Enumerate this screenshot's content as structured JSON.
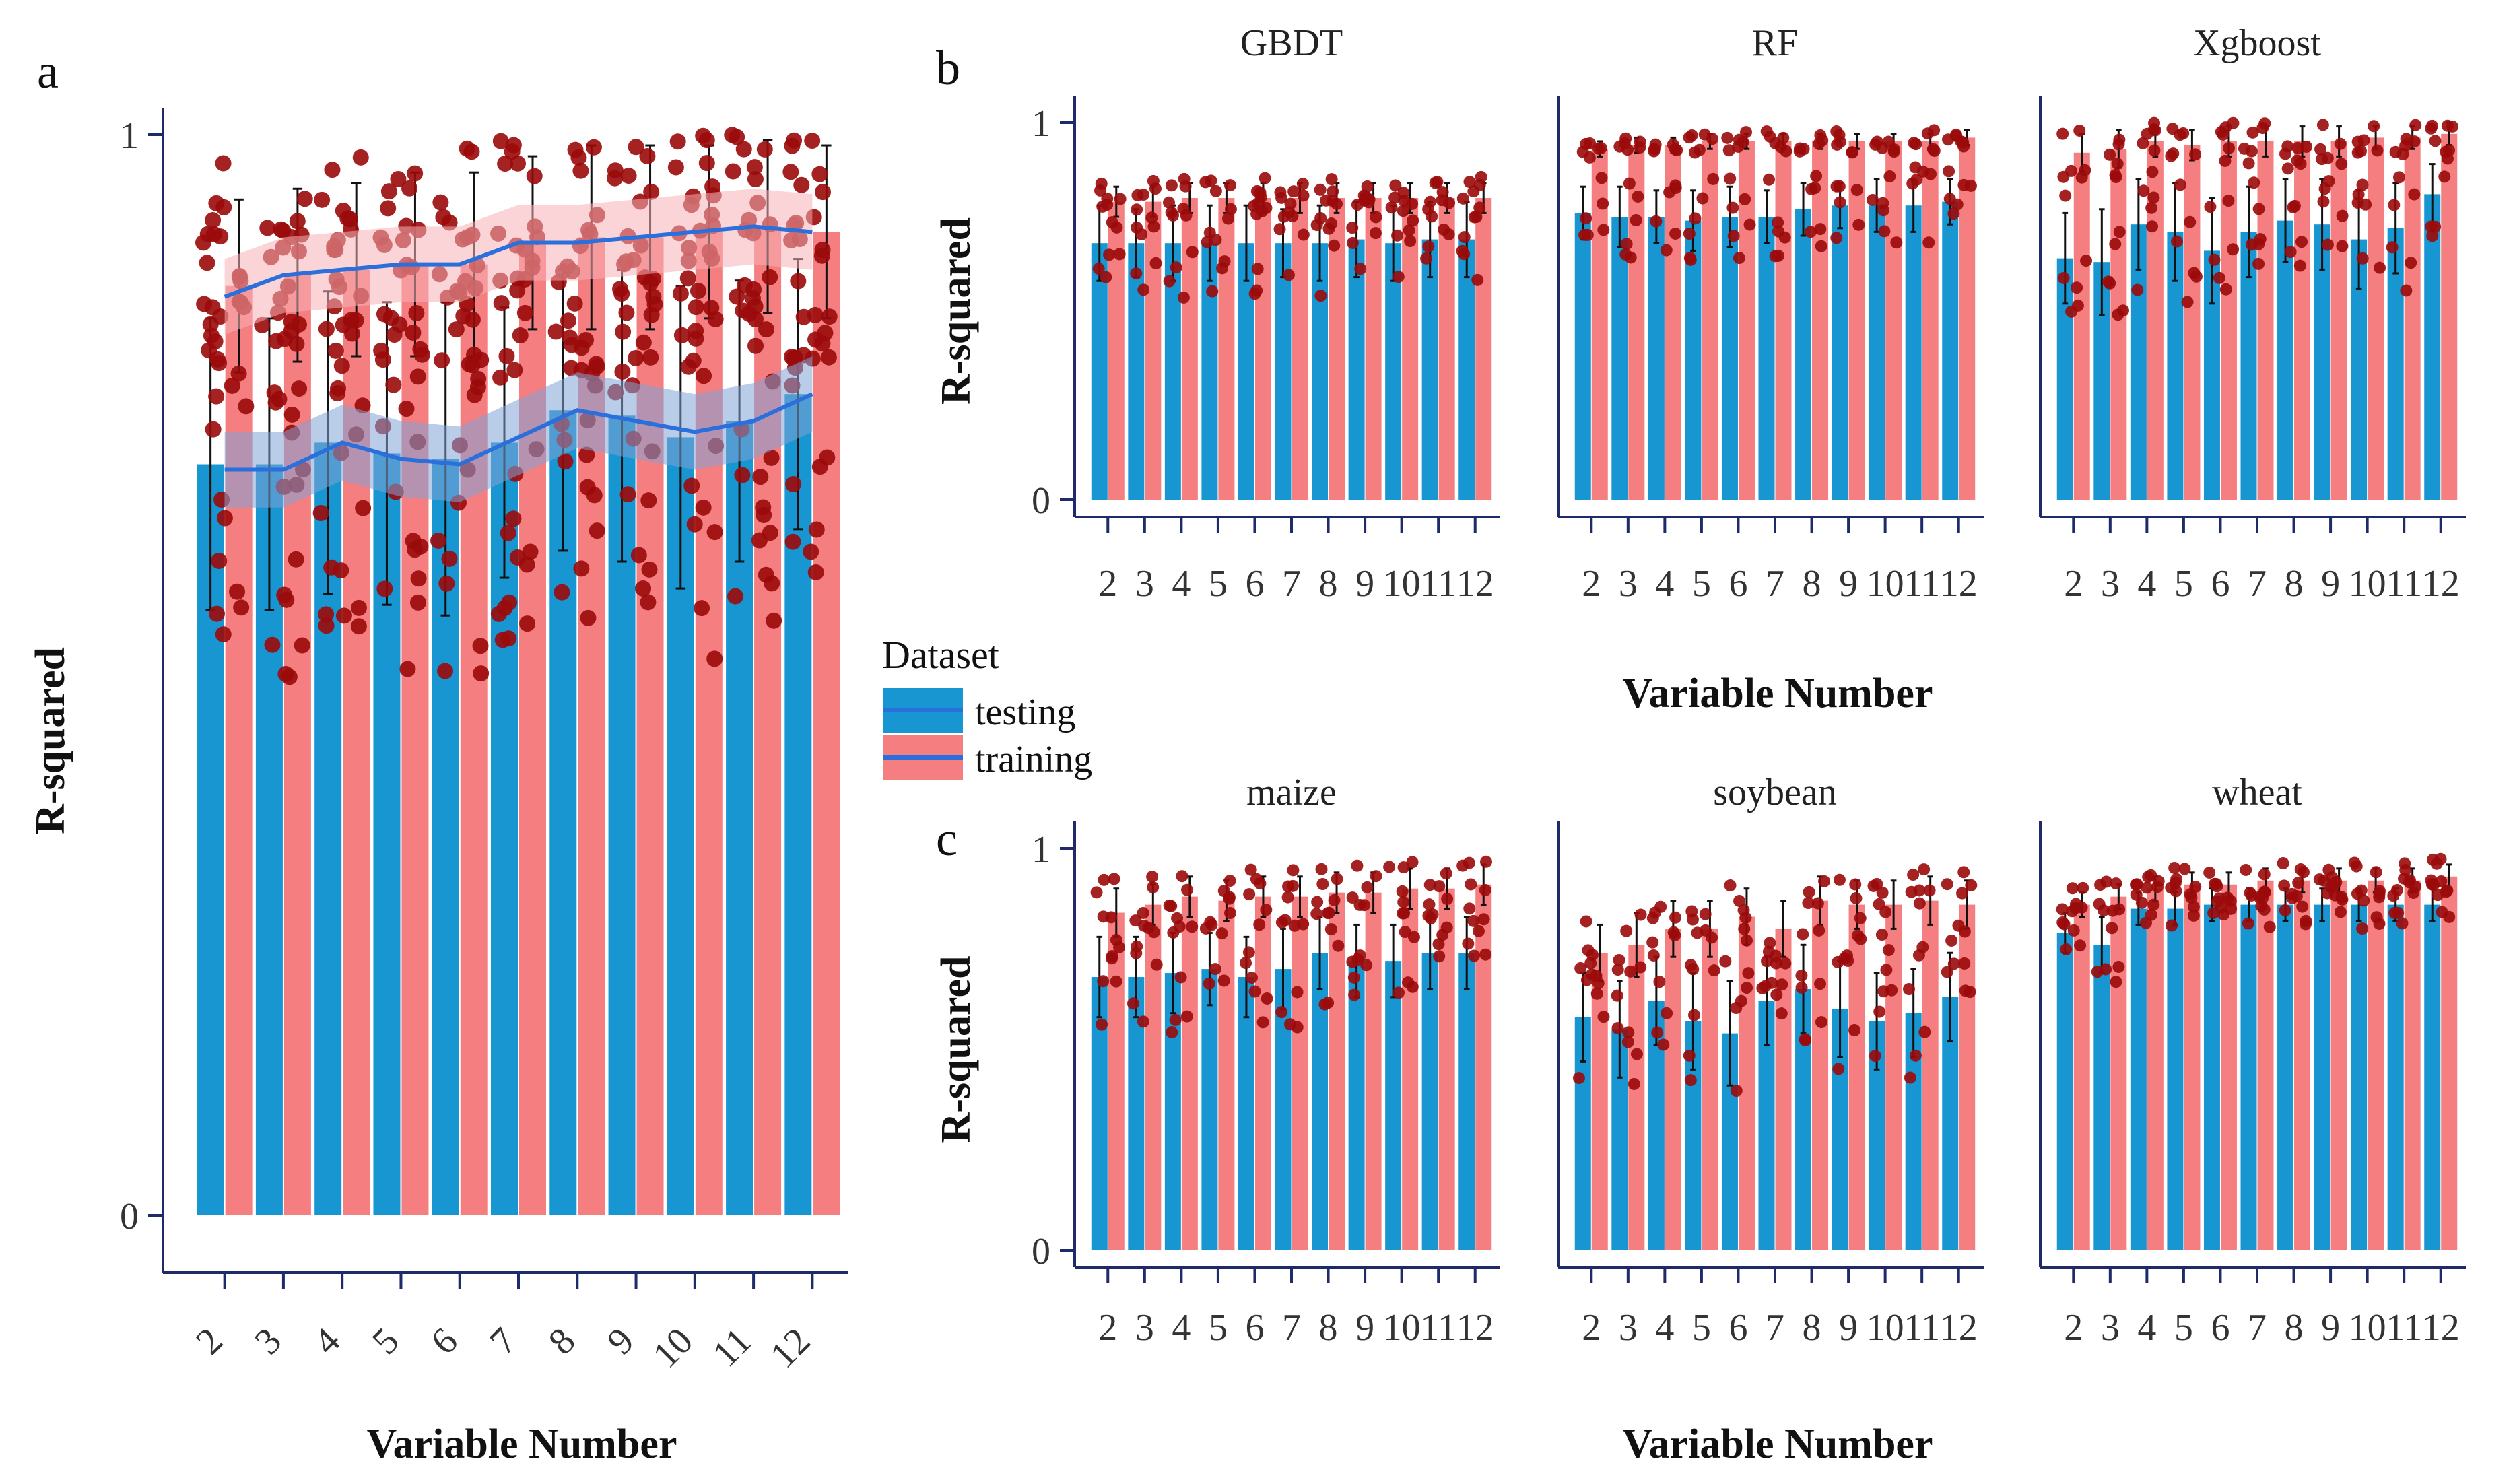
{
  "colors": {
    "testing": "#1796D1",
    "training": "#F57F80",
    "points": "#9B0A0A",
    "smooth_line": "#2A6FDB",
    "testing_ribbon": "#7FA3D6",
    "training_ribbon": "#F6B1B4",
    "axis": "#1F2A6B"
  },
  "legend": {
    "title": "Dataset",
    "items": [
      {
        "label": "testing",
        "color_key": "testing"
      },
      {
        "label": "training",
        "color_key": "training"
      }
    ]
  },
  "chart_data": [
    {
      "panel": "a",
      "type": "bar",
      "title": "",
      "xlabel": "Variable Number",
      "ylabel": "R-squared",
      "ylim": [
        0,
        1.05
      ],
      "y_ticks": [
        "0",
        "1"
      ],
      "x_tick_rotation": "angled",
      "categories": [
        "2",
        "3",
        "4",
        "5",
        "6",
        "7",
        "8",
        "9",
        "10",
        "11",
        "12"
      ],
      "series": [
        {
          "name": "testing",
          "values": [
            0.695,
            0.695,
            0.715,
            0.705,
            0.7,
            0.715,
            0.745,
            0.74,
            0.72,
            0.735,
            0.76
          ],
          "errors": [
            0.135,
            0.135,
            0.14,
            0.14,
            0.145,
            0.125,
            0.13,
            0.135,
            0.14,
            0.13,
            0.125
          ]
        },
        {
          "name": "training",
          "values": [
            0.86,
            0.87,
            0.875,
            0.88,
            0.88,
            0.9,
            0.905,
            0.905,
            0.91,
            0.915,
            0.91
          ],
          "errors": [
            0.08,
            0.08,
            0.08,
            0.085,
            0.085,
            0.08,
            0.085,
            0.085,
            0.08,
            0.08,
            0.08
          ]
        }
      ],
      "smooth": [
        {
          "name": "testing",
          "values": [
            0.69,
            0.69,
            0.715,
            0.7,
            0.695,
            0.72,
            0.745,
            0.735,
            0.725,
            0.735,
            0.76
          ],
          "band": 0.035
        },
        {
          "name": "training",
          "values": [
            0.85,
            0.87,
            0.875,
            0.88,
            0.88,
            0.9,
            0.9,
            0.905,
            0.91,
            0.915,
            0.91
          ],
          "band": 0.035
        }
      ],
      "grid": false
    },
    {
      "panel": "b",
      "type": "bar",
      "xlabel": "Variable Number",
      "ylabel": "R-squared",
      "ylim": [
        0,
        1.05
      ],
      "y_ticks": [
        "0",
        "1"
      ],
      "categories": [
        "2",
        "3",
        "4",
        "5",
        "6",
        "7",
        "8",
        "9",
        "10",
        "11",
        "12"
      ],
      "facets": [
        {
          "title": "GBDT",
          "series": [
            {
              "name": "testing",
              "values": [
                0.68,
                0.68,
                0.68,
                0.68,
                0.68,
                0.68,
                0.68,
                0.69,
                0.68,
                0.69,
                0.69
              ],
              "errors": [
                0.1,
                0.09,
                0.1,
                0.1,
                0.1,
                0.09,
                0.1,
                0.1,
                0.1,
                0.1,
                0.1
              ]
            },
            {
              "name": "training",
              "values": [
                0.79,
                0.79,
                0.8,
                0.8,
                0.8,
                0.8,
                0.8,
                0.8,
                0.8,
                0.8,
                0.8
              ],
              "errors": [
                0.04,
                0.04,
                0.04,
                0.04,
                0.04,
                0.04,
                0.04,
                0.04,
                0.04,
                0.04,
                0.04
              ]
            }
          ]
        },
        {
          "title": "RF",
          "series": [
            {
              "name": "testing",
              "values": [
                0.76,
                0.75,
                0.75,
                0.74,
                0.75,
                0.75,
                0.77,
                0.78,
                0.78,
                0.78,
                0.79
              ],
              "errors": [
                0.07,
                0.08,
                0.07,
                0.08,
                0.08,
                0.07,
                0.07,
                0.06,
                0.07,
                0.07,
                0.06
              ]
            },
            {
              "name": "training",
              "values": [
                0.93,
                0.94,
                0.94,
                0.95,
                0.95,
                0.95,
                0.95,
                0.95,
                0.95,
                0.95,
                0.96
              ],
              "errors": [
                0.02,
                0.02,
                0.02,
                0.02,
                0.02,
                0.02,
                0.02,
                0.02,
                0.02,
                0.02,
                0.02
              ]
            }
          ]
        },
        {
          "title": "Xgboost",
          "series": [
            {
              "name": "testing",
              "values": [
                0.64,
                0.63,
                0.73,
                0.71,
                0.66,
                0.71,
                0.74,
                0.73,
                0.69,
                0.72,
                0.81
              ],
              "errors": [
                0.12,
                0.14,
                0.12,
                0.13,
                0.14,
                0.12,
                0.11,
                0.12,
                0.13,
                0.12,
                0.08
              ]
            },
            {
              "name": "training",
              "values": [
                0.92,
                0.93,
                0.95,
                0.94,
                0.95,
                0.95,
                0.95,
                0.95,
                0.96,
                0.96,
                0.97
              ],
              "errors": [
                0.05,
                0.05,
                0.04,
                0.04,
                0.04,
                0.04,
                0.04,
                0.04,
                0.03,
                0.03,
                0.03
              ]
            }
          ]
        }
      ]
    },
    {
      "panel": "c",
      "type": "bar",
      "xlabel": "Variable Number",
      "ylabel": "R-squared",
      "ylim": [
        0,
        1.05
      ],
      "y_ticks": [
        "0",
        "1"
      ],
      "categories": [
        "2",
        "3",
        "4",
        "5",
        "6",
        "7",
        "8",
        "9",
        "10",
        "11",
        "12"
      ],
      "facets": [
        {
          "title": "maize",
          "series": [
            {
              "name": "testing",
              "values": [
                0.68,
                0.68,
                0.69,
                0.7,
                0.68,
                0.7,
                0.74,
                0.72,
                0.72,
                0.74,
                0.74
              ],
              "errors": [
                0.1,
                0.1,
                0.1,
                0.09,
                0.1,
                0.1,
                0.09,
                0.09,
                0.09,
                0.09,
                0.09
              ]
            },
            {
              "name": "training",
              "values": [
                0.84,
                0.86,
                0.88,
                0.87,
                0.88,
                0.88,
                0.89,
                0.89,
                0.9,
                0.9,
                0.91
              ],
              "errors": [
                0.06,
                0.05,
                0.05,
                0.05,
                0.05,
                0.05,
                0.05,
                0.05,
                0.05,
                0.05,
                0.05
              ]
            }
          ]
        },
        {
          "title": "soybean",
          "series": [
            {
              "name": "testing",
              "values": [
                0.58,
                0.55,
                0.62,
                0.57,
                0.54,
                0.62,
                0.65,
                0.6,
                0.57,
                0.59,
                0.63
              ],
              "errors": [
                0.11,
                0.12,
                0.11,
                0.12,
                0.13,
                0.11,
                0.11,
                0.12,
                0.12,
                0.11,
                0.11
              ]
            },
            {
              "name": "training",
              "values": [
                0.74,
                0.76,
                0.8,
                0.8,
                0.83,
                0.8,
                0.87,
                0.86,
                0.86,
                0.87,
                0.86
              ],
              "errors": [
                0.07,
                0.08,
                0.07,
                0.07,
                0.07,
                0.07,
                0.06,
                0.06,
                0.06,
                0.06,
                0.06
              ]
            }
          ]
        },
        {
          "title": "wheat",
          "series": [
            {
              "name": "testing",
              "values": [
                0.79,
                0.76,
                0.85,
                0.85,
                0.86,
                0.86,
                0.86,
                0.86,
                0.86,
                0.86,
                0.86
              ],
              "errors": [
                0.05,
                0.07,
                0.04,
                0.04,
                0.04,
                0.04,
                0.04,
                0.04,
                0.04,
                0.04,
                0.04
              ]
            },
            {
              "name": "training",
              "values": [
                0.86,
                0.88,
                0.9,
                0.91,
                0.91,
                0.92,
                0.92,
                0.92,
                0.92,
                0.92,
                0.93
              ],
              "errors": [
                0.03,
                0.03,
                0.03,
                0.03,
                0.03,
                0.03,
                0.03,
                0.03,
                0.03,
                0.03,
                0.03
              ]
            }
          ]
        }
      ]
    }
  ]
}
